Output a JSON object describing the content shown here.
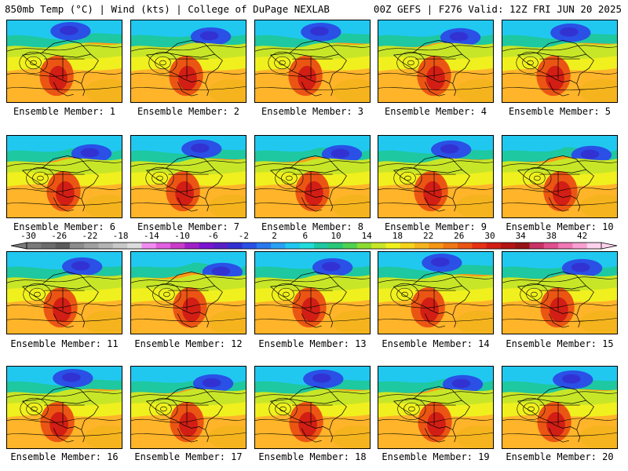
{
  "header": {
    "left": "850mb Temp (°C) | Wind (kts) | College of DuPage NEXLAB",
    "right": "00Z GEFS | F276 Valid: 12Z FRI JUN 20 2025"
  },
  "colorbar": {
    "labels": [
      "-30",
      "-26",
      "-22",
      "-18",
      "-14",
      "-10",
      "-6",
      "-2",
      "2",
      "6",
      "10",
      "14",
      "18",
      "22",
      "26",
      "30",
      "34",
      "38",
      "42"
    ],
    "colors": [
      "#7a7a7a",
      "#6b6b6b",
      "#5c5c5c",
      "#8c8c8c",
      "#a0a0a0",
      "#b4b4b4",
      "#c8c8c8",
      "#dcdcdc",
      "#f08cf0",
      "#e060e0",
      "#c83cc8",
      "#a020c8",
      "#7a14d2",
      "#5a1ec8",
      "#3232d2",
      "#2a50e6",
      "#2a78f0",
      "#2aa0f5",
      "#20c8f0",
      "#20dcdc",
      "#1ec8a0",
      "#28c878",
      "#50d250",
      "#8cdc32",
      "#c8e628",
      "#f0f01e",
      "#f5d21e",
      "#f5b41e",
      "#f59614",
      "#f07814",
      "#eb5514",
      "#e63214",
      "#d21e14",
      "#b41414",
      "#961414",
      "#c83264",
      "#e0508c",
      "#f078b4",
      "#f8a0d2",
      "#fcd2ec"
    ]
  },
  "panels": [
    {
      "label": "Ensemble Member: 1"
    },
    {
      "label": "Ensemble Member: 2"
    },
    {
      "label": "Ensemble Member: 3"
    },
    {
      "label": "Ensemble Member: 4"
    },
    {
      "label": "Ensemble Member: 5"
    },
    {
      "label": "Ensemble Member: 6"
    },
    {
      "label": "Ensemble Member: 7"
    },
    {
      "label": "Ensemble Member: 8"
    },
    {
      "label": "Ensemble Member: 9"
    },
    {
      "label": "Ensemble Member: 10"
    },
    {
      "label": "Ensemble Member: 11"
    },
    {
      "label": "Ensemble Member: 12"
    },
    {
      "label": "Ensemble Member: 13"
    },
    {
      "label": "Ensemble Member: 14"
    },
    {
      "label": "Ensemble Member: 15"
    },
    {
      "label": "Ensemble Member: 16"
    },
    {
      "label": "Ensemble Member: 17"
    },
    {
      "label": "Ensemble Member: 18"
    },
    {
      "label": "Ensemble Member: 19"
    },
    {
      "label": "Ensemble Member: 20"
    }
  ]
}
